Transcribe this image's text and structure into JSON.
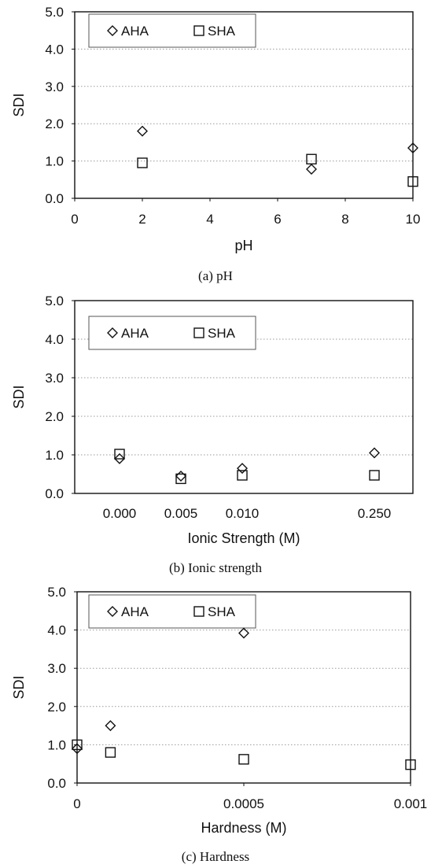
{
  "chart_data": [
    {
      "type": "scatter",
      "caption": "(a) pH",
      "xlabel": "pH",
      "ylabel": "SDI",
      "xlim": [
        0,
        10
      ],
      "ylim": [
        0,
        5
      ],
      "x_ticks": [
        "0",
        "2",
        "4",
        "6",
        "8",
        "10"
      ],
      "y_ticks": [
        "0.0",
        "1.0",
        "2.0",
        "3.0",
        "4.0",
        "5.0"
      ],
      "grid": "horizontal-dotted",
      "legend": "top-left",
      "series": [
        {
          "name": "AHA",
          "marker": "diamond",
          "x": [
            2,
            7,
            10
          ],
          "y": [
            1.8,
            0.78,
            1.35
          ]
        },
        {
          "name": "SHA",
          "marker": "square",
          "x": [
            2,
            7,
            10
          ],
          "y": [
            0.95,
            1.05,
            0.45
          ]
        }
      ]
    },
    {
      "type": "scatter",
      "caption": "(b) Ionic strength",
      "xlabel": "Ionic Strength (M)",
      "ylabel": "SDI",
      "x_categorical": true,
      "categories": [
        "0.000",
        "0.005",
        "0.010",
        "0.250"
      ],
      "ylim": [
        0,
        5
      ],
      "y_ticks": [
        "0.0",
        "1.0",
        "2.0",
        "3.0",
        "4.0",
        "5.0"
      ],
      "grid": "horizontal-dotted",
      "legend": "top-left",
      "series": [
        {
          "name": "AHA",
          "marker": "diamond",
          "y": [
            0.9,
            0.45,
            0.65,
            1.05
          ]
        },
        {
          "name": "SHA",
          "marker": "square",
          "y": [
            1.02,
            0.38,
            0.47,
            0.47
          ]
        }
      ]
    },
    {
      "type": "scatter",
      "caption": "(c) Hardness",
      "xlabel": "Hardness (M)",
      "ylabel": "SDI",
      "xlim": [
        0,
        0.001
      ],
      "ylim": [
        0,
        5
      ],
      "x_ticks": [
        "0",
        "0.0005",
        "0.001"
      ],
      "y_ticks": [
        "0.0",
        "1.0",
        "2.0",
        "3.0",
        "4.0",
        "5.0"
      ],
      "grid": "horizontal-dotted",
      "legend": "top-left",
      "series": [
        {
          "name": "AHA",
          "marker": "diamond",
          "x": [
            0,
            0.0001,
            0.0005
          ],
          "y": [
            0.9,
            1.5,
            3.92
          ]
        },
        {
          "name": "SHA",
          "marker": "square",
          "x": [
            0,
            0.0001,
            0.0005,
            0.001
          ],
          "y": [
            1.0,
            0.8,
            0.62,
            0.48
          ]
        }
      ]
    }
  ]
}
